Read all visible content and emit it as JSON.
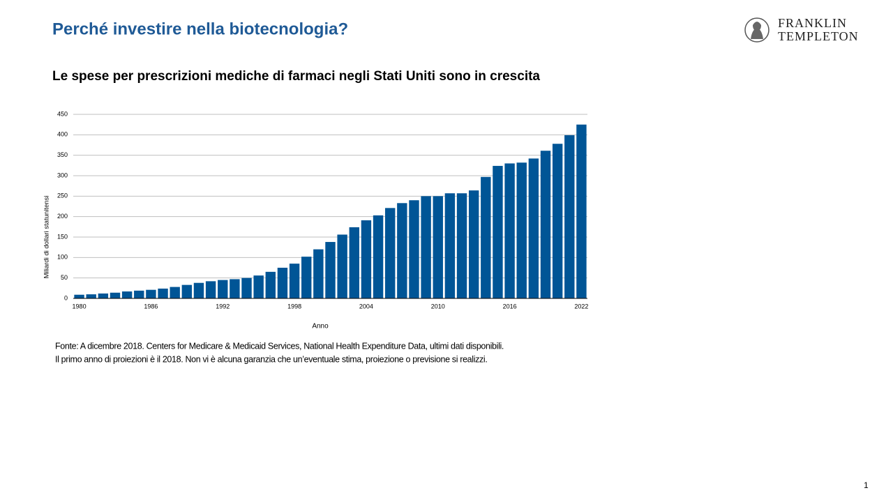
{
  "slide": {
    "title": "Perché investire nella biotecnologia?",
    "logo": [
      "FRANKLIN",
      "TEMPLETON"
    ],
    "source": [
      "Fonte: A  dicembre 2018. Centers for Medicare & Medicaid Services, National Health Expenditure Data, ultimi dati disponibili.",
      "Il primo anno di proiezioni è il 2018. Non vi  è alcuna garanzia che un’eventuale stima, proiezione o previsione si realizzi."
    ],
    "page": 1
  },
  "chart_data": {
    "type": "bar",
    "title": "Le spese per prescrizioni mediche di farmaci negli Stati Uniti sono in crescita",
    "x_label": "Anno",
    "y_label": "Miliardi  di dollari statunitensi",
    "x": [
      1980,
      1981,
      1982,
      1983,
      1984,
      1985,
      1986,
      1987,
      1988,
      1989,
      1990,
      1991,
      1992,
      1993,
      1994,
      1995,
      1996,
      1997,
      1998,
      1999,
      2000,
      2001,
      2002,
      2003,
      2004,
      2005,
      2006,
      2007,
      2008,
      2009,
      2010,
      2011,
      2012,
      2013,
      2014,
      2015,
      2016,
      2017,
      2018,
      2019,
      2020,
      2021,
      2022
    ],
    "values": [
      9,
      10,
      12,
      14,
      17,
      19,
      21,
      24,
      28,
      33,
      38,
      42,
      45,
      47,
      50,
      56,
      65,
      75,
      85,
      102,
      120,
      138,
      156,
      174,
      191,
      203,
      221,
      233,
      240,
      250,
      250,
      257,
      257,
      264,
      297,
      324,
      330,
      332,
      342,
      361,
      378,
      399,
      425
    ],
    "color": "#005596",
    "xlim": [
      1979.5,
      2022.5
    ],
    "xticks": [
      1980,
      1986,
      1992,
      1998,
      2004,
      2010,
      2016,
      2022
    ],
    "ylim": [
      0,
      450
    ],
    "yticks": [
      0,
      50,
      100,
      150,
      200,
      250,
      300,
      350,
      400,
      450
    ],
    "grid": true
  }
}
